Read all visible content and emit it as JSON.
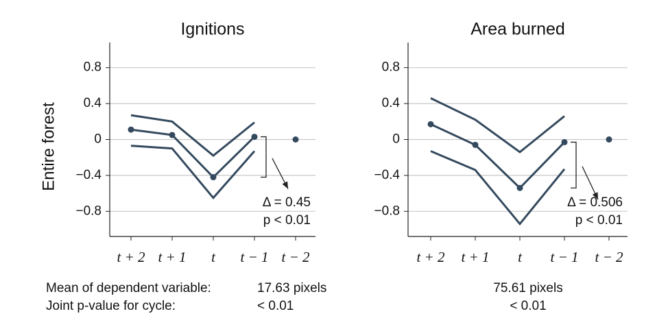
{
  "y_label": "Entire forest",
  "note_labels": [
    "Mean of dependent variable:",
    "Joint p-value for cycle:"
  ],
  "chart_data": [
    {
      "type": "line",
      "title": "Ignitions",
      "categories": [
        "t + 2",
        "t + 1",
        "t",
        "t − 1",
        "t − 2"
      ],
      "series": [
        {
          "color": "#34495e",
          "markers": true,
          "values": [
            0.11,
            0.05,
            -0.42,
            0.03,
            null
          ]
        },
        {
          "color": "#34495e",
          "markers": false,
          "values": [
            0.27,
            0.2,
            -0.18,
            0.19,
            null
          ]
        },
        {
          "color": "#34495e",
          "markers": false,
          "values": [
            -0.07,
            -0.1,
            -0.65,
            -0.13,
            null
          ]
        },
        {
          "color": "#34495e",
          "markers": true,
          "values": [
            null,
            null,
            null,
            null,
            0
          ]
        }
      ],
      "ylim": [
        -1.08,
        1.08
      ],
      "yticks": [
        {
          "value": 0.8,
          "label": "0.8"
        },
        {
          "value": 0.4,
          "label": "0.4"
        },
        0,
        {
          "value": -0.4,
          "label": "−0.4"
        },
        {
          "value": -0.8,
          "label": "−0.8"
        }
      ],
      "grid": true,
      "annotations": [
        "Δ = 0.45",
        "p < 0.01"
      ],
      "notes": [
        "17.63 pixels",
        "< 0.01"
      ]
    },
    {
      "type": "line",
      "title": "Area burned",
      "categories": [
        "t + 2",
        "t + 1",
        "t",
        "t − 1",
        "t − 2"
      ],
      "series": [
        {
          "color": "#34495e",
          "markers": true,
          "values": [
            0.17,
            -0.06,
            -0.54,
            -0.03,
            null
          ]
        },
        {
          "color": "#34495e",
          "markers": false,
          "values": [
            0.46,
            0.22,
            -0.14,
            0.26,
            null
          ]
        },
        {
          "color": "#34495e",
          "markers": false,
          "values": [
            -0.13,
            -0.34,
            -0.94,
            -0.33,
            null
          ]
        },
        {
          "color": "#34495e",
          "markers": true,
          "values": [
            null,
            null,
            null,
            null,
            0
          ]
        }
      ],
      "ylim": [
        -1.08,
        1.08
      ],
      "yticks": [
        {
          "value": 0.8,
          "label": "0.8"
        },
        {
          "value": 0.4,
          "label": "0.4"
        },
        0,
        {
          "value": -0.4,
          "label": "−0.4"
        },
        {
          "value": -0.8,
          "label": "−0.8"
        }
      ],
      "grid": true,
      "annotations": [
        "Δ = 0.506",
        "p < 0.01"
      ],
      "notes": [
        "75.61 pixels",
        "< 0.01"
      ]
    }
  ]
}
